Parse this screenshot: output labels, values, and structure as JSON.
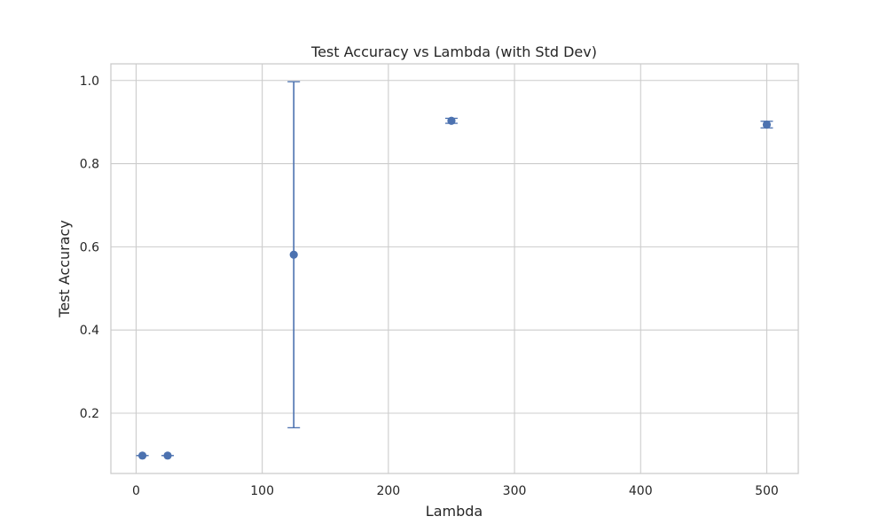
{
  "chart_data": {
    "type": "scatter",
    "title": "Test Accuracy vs Lambda (with Std Dev)",
    "xlabel": "Lambda",
    "ylabel": "Test Accuracy",
    "xlim": [
      -20,
      525
    ],
    "ylim": [
      0.055,
      1.04
    ],
    "xticks": [
      0,
      100,
      200,
      300,
      400,
      500
    ],
    "yticks": [
      0.2,
      0.4,
      0.6,
      0.8,
      1.0
    ],
    "xtick_labels": [
      "0",
      "100",
      "200",
      "300",
      "400",
      "500"
    ],
    "ytick_labels": [
      "0.2",
      "0.4",
      "0.6",
      "0.8",
      "1.0"
    ],
    "grid": true,
    "series": [
      {
        "color": "#4c72b0",
        "points": [
          {
            "x": 5,
            "y": 0.098,
            "std": 0.0
          },
          {
            "x": 25,
            "y": 0.098,
            "std": 0.0
          },
          {
            "x": 125,
            "y": 0.581,
            "std": 0.416
          },
          {
            "x": 250,
            "y": 0.903,
            "std": 0.006
          },
          {
            "x": 500,
            "y": 0.894,
            "std": 0.008
          }
        ]
      }
    ]
  }
}
